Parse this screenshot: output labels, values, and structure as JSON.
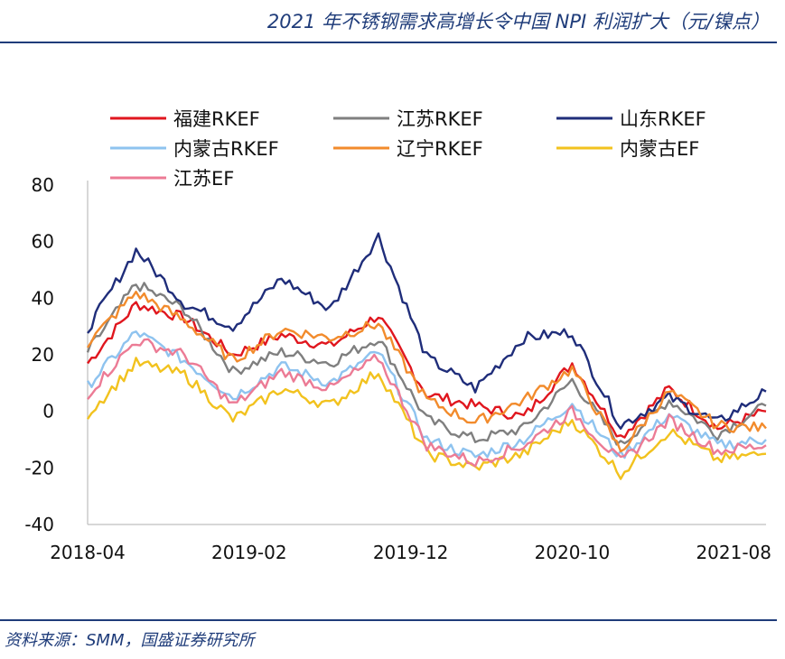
{
  "header": {
    "title": "2021 年不锈钢需求高增长令中国 NPI 利润扩大（元/镍点）"
  },
  "footer": {
    "source": "资料来源：SMM，国盛证券研究所"
  },
  "chart_data": {
    "type": "line",
    "title": "2021 年不锈钢需求高增长令中国 NPI 利润扩大（元/镍点）",
    "xlabel": "",
    "ylabel": "",
    "ylim": [
      -40,
      80
    ],
    "yticks": [
      -40,
      -20,
      0,
      20,
      40,
      60,
      80
    ],
    "x_tick_labels": [
      "2018-04",
      "2019-02",
      "2019-12",
      "2020-10",
      "2021-08"
    ],
    "x": [
      "2018-04",
      "2018-07",
      "2018-10",
      "2019-01",
      "2019-04",
      "2019-07",
      "2019-10",
      "2020-01",
      "2020-04",
      "2020-07",
      "2020-10",
      "2021-01",
      "2021-04",
      "2021-07",
      "2021-10"
    ],
    "grid": false,
    "legend_position": "top",
    "series": [
      {
        "name": "福建RKEF",
        "color": "#e0161e",
        "values": [
          17,
          38,
          33,
          20,
          27,
          23,
          34,
          6,
          2,
          -2,
          17,
          -9,
          8,
          -6,
          0
        ]
      },
      {
        "name": "江苏RKEF",
        "color": "#7f7f7f",
        "values": [
          21,
          45,
          36,
          14,
          21,
          17,
          26,
          -3,
          -10,
          -6,
          11,
          -12,
          4,
          -8,
          2
        ]
      },
      {
        "name": "山东RKEF",
        "color": "#1f2d7a",
        "values": [
          29,
          57,
          38,
          30,
          47,
          36,
          62,
          19,
          8,
          26,
          28,
          -5,
          5,
          -4,
          7
        ]
      },
      {
        "name": "内蒙古RKEF",
        "color": "#8ec3ef",
        "values": [
          9,
          28,
          18,
          5,
          16,
          10,
          21,
          -10,
          -16,
          -10,
          3,
          -16,
          -1,
          -12,
          -10
        ]
      },
      {
        "name": "辽宁RKEF",
        "color": "#f28b2c",
        "values": [
          24,
          42,
          32,
          18,
          29,
          26,
          31,
          4,
          -4,
          4,
          15,
          -14,
          7,
          -5,
          -6
        ]
      },
      {
        "name": "内蒙古EF",
        "color": "#f2c21e",
        "values": [
          -1,
          17,
          13,
          -3,
          8,
          2,
          14,
          -15,
          -20,
          -15,
          -3,
          -22,
          -7,
          -17,
          -15
        ]
      },
      {
        "name": "江苏EF",
        "color": "#ec7b95",
        "values": [
          6,
          25,
          20,
          2,
          14,
          8,
          19,
          -12,
          -18,
          -12,
          0,
          -18,
          -3,
          -14,
          -12
        ]
      }
    ]
  }
}
